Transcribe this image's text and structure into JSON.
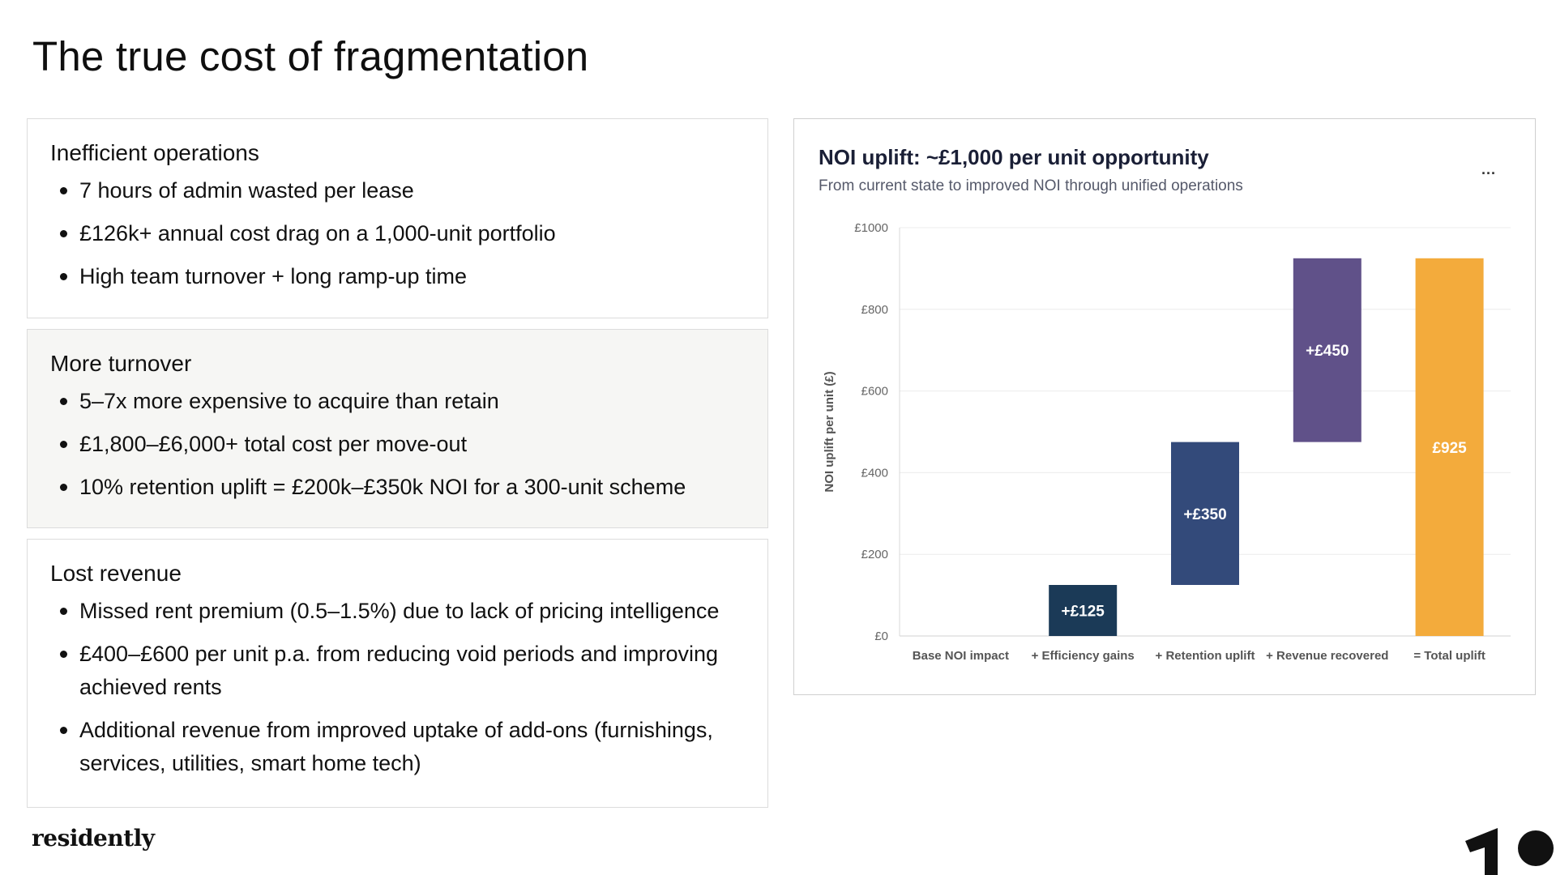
{
  "slide": {
    "title": "The true cost of fragmentation"
  },
  "cards": [
    {
      "title": "Inefficient operations",
      "bullets": [
        "7 hours of admin wasted per lease",
        "£126k+ annual cost drag on a 1,000-unit portfolio",
        "High team turnover + long ramp-up time"
      ]
    },
    {
      "title": "More turnover",
      "bullets": [
        "5–7x more expensive to acquire than retain",
        "£1,800–£6,000+ total cost per move-out",
        "10% retention uplift = £200k–£350k NOI for a 300-unit scheme"
      ]
    },
    {
      "title": "Lost revenue",
      "bullets": [
        "Missed rent premium (0.5–1.5%) due to lack of pricing intelligence",
        "£400–£600 per unit p.a. from reducing void periods and improving achieved rents",
        "Additional revenue from improved uptake of add-ons (furnishings, services, utilities, smart home tech)"
      ]
    }
  ],
  "chart": {
    "title": "NOI uplift: ~£1,000 per unit opportunity",
    "subtitle": "From current state to improved NOI through unified operations",
    "menu_label": "..."
  },
  "chart_data": {
    "type": "bar",
    "subtype": "waterfall",
    "title": "NOI uplift: ~£1,000 per unit opportunity",
    "subtitle": "From current state to improved NOI through unified operations",
    "ylabel": "NOI uplift per unit (£)",
    "ylim": [
      0,
      1000
    ],
    "yticks": [
      0,
      200,
      400,
      600,
      800,
      1000
    ],
    "ytick_labels": [
      "£0",
      "£200",
      "£400",
      "£600",
      "£800",
      "£1000"
    ],
    "grid": true,
    "legend": "none",
    "categories": [
      "Base NOI impact",
      "+ Efficiency gains",
      "+ Retention uplift",
      "+ Revenue recovered",
      "= Total uplift"
    ],
    "bars": [
      {
        "category": "Base NOI impact",
        "start": 0,
        "end": 0,
        "label": "",
        "color": "#1b3a57"
      },
      {
        "category": "+ Efficiency gains",
        "start": 0,
        "end": 125,
        "label": "+£125",
        "color": "#1b3a57"
      },
      {
        "category": "+ Retention uplift",
        "start": 125,
        "end": 475,
        "label": "+£350",
        "color": "#334a7a"
      },
      {
        "category": "+ Revenue recovered",
        "start": 475,
        "end": 925,
        "label": "+£450",
        "color": "#605189"
      },
      {
        "category": "= Total uplift",
        "start": 0,
        "end": 925,
        "label": "£925",
        "color": "#f3ab3c"
      }
    ]
  },
  "footer": {
    "logo_text": "residently",
    "brand_mark_icon": "brand-mark-icon"
  }
}
